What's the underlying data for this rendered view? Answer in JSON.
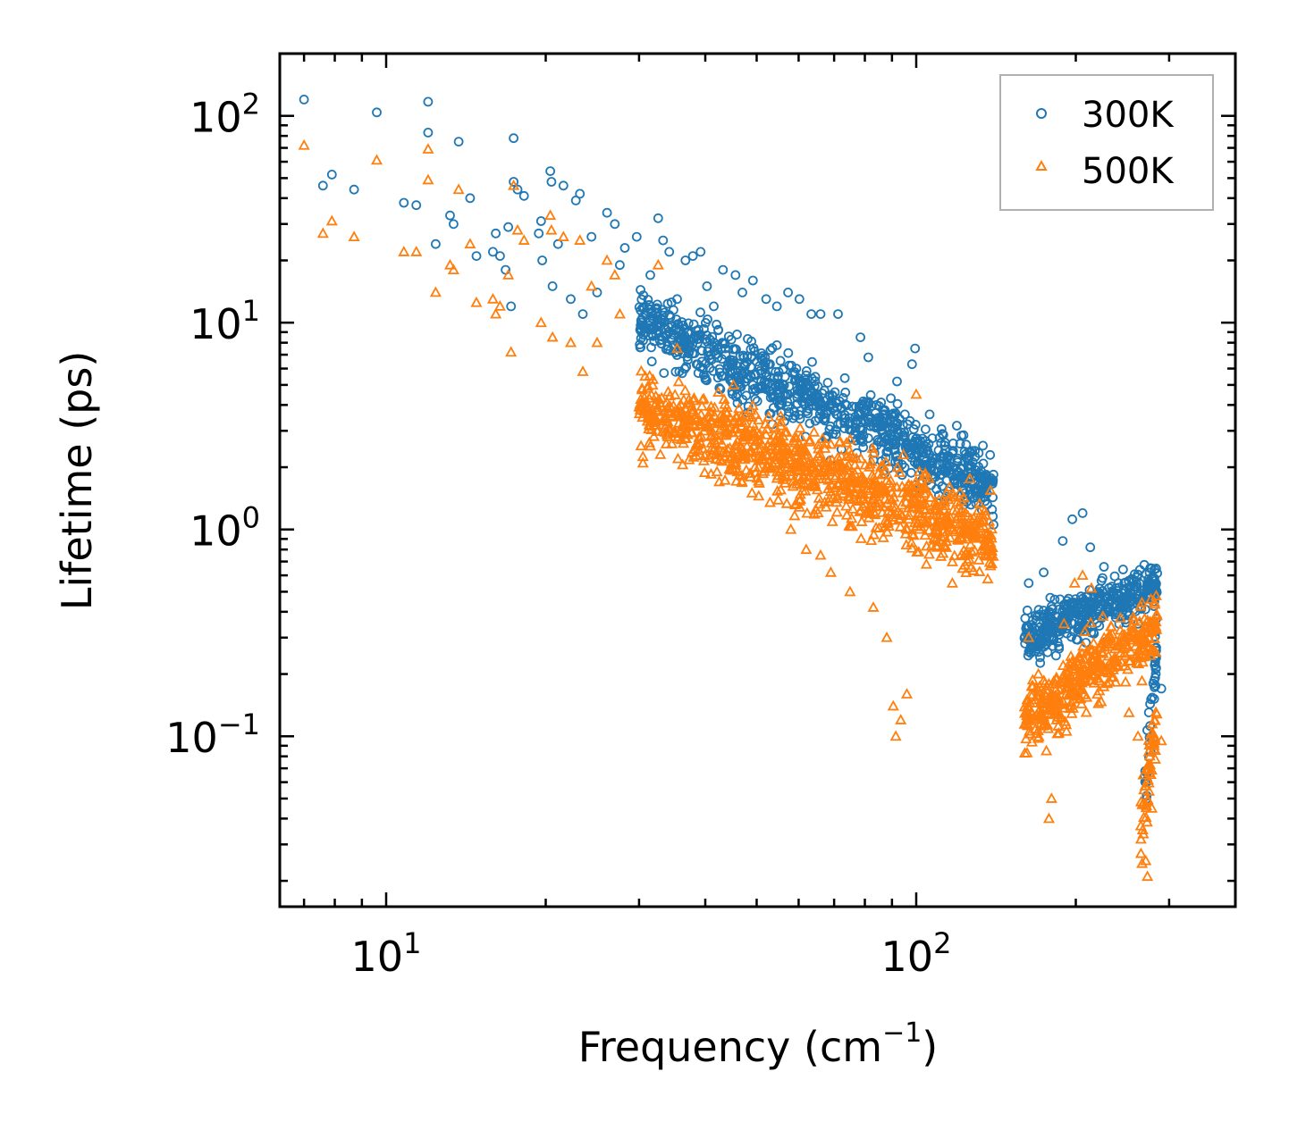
{
  "chart_data": {
    "type": "scatter",
    "title": "",
    "xlabel": {
      "text": "Frequency (cm",
      "sup": "−1",
      "suffix": ")"
    },
    "ylabel": "Lifetime (ps)",
    "xscale": "log",
    "yscale": "log",
    "xlim": [
      6.3,
      400
    ],
    "ylim": [
      0.015,
      200
    ],
    "grid": false,
    "legend_position": "top-right",
    "x_ticks": [
      {
        "value": 10,
        "base": "10",
        "exp": "1"
      },
      {
        "value": 100,
        "base": "10",
        "exp": "2"
      }
    ],
    "y_ticks": [
      {
        "value": 100,
        "base": "10",
        "exp": "2"
      },
      {
        "value": 10,
        "base": "10",
        "exp": "1"
      },
      {
        "value": 1,
        "base": "10",
        "exp": "0"
      },
      {
        "value": 0.1,
        "base": "10",
        "exp": "−1"
      }
    ],
    "series": [
      {
        "name": "300K",
        "marker": "circle",
        "color": "#1f77b4",
        "points": [
          [
            7.0,
            120
          ],
          [
            7.6,
            46
          ],
          [
            7.9,
            52
          ],
          [
            8.7,
            44
          ],
          [
            9.6,
            104
          ],
          [
            10.8,
            38
          ],
          [
            11.4,
            37
          ],
          [
            12.0,
            117
          ],
          [
            12.0,
            83
          ],
          [
            12.4,
            24
          ],
          [
            13.2,
            33
          ],
          [
            13.4,
            30
          ],
          [
            13.7,
            75
          ],
          [
            14.4,
            40
          ],
          [
            14.8,
            21
          ],
          [
            15.9,
            22
          ],
          [
            16.1,
            27
          ],
          [
            16.4,
            21
          ],
          [
            16.8,
            18
          ],
          [
            17.0,
            29
          ],
          [
            17.2,
            12
          ],
          [
            17.4,
            78
          ],
          [
            17.4,
            48
          ],
          [
            17.7,
            44
          ],
          [
            18.2,
            41
          ],
          [
            19.4,
            27
          ],
          [
            19.6,
            31
          ],
          [
            19.7,
            20
          ],
          [
            20.4,
            54
          ],
          [
            20.5,
            48
          ],
          [
            20.6,
            15
          ],
          [
            21.1,
            24
          ],
          [
            21.6,
            46
          ],
          [
            22.3,
            13
          ],
          [
            22.8,
            39
          ],
          [
            23.2,
            42
          ],
          [
            23.5,
            11
          ],
          [
            24.4,
            26
          ],
          [
            25.0,
            14
          ],
          [
            26.1,
            34
          ],
          [
            27.0,
            30
          ],
          [
            27.6,
            19
          ],
          [
            28.2,
            23
          ],
          [
            29.7,
            26
          ],
          [
            30.8,
            9.5
          ],
          [
            31.5,
            17
          ],
          [
            32.6,
            32
          ],
          [
            33.3,
            25
          ],
          [
            34.2,
            22
          ],
          [
            35.4,
            13
          ],
          [
            36.7,
            20
          ],
          [
            37.9,
            21
          ],
          [
            39.2,
            22
          ],
          [
            40.3,
            15
          ],
          [
            41.5,
            12
          ],
          [
            43.2,
            18
          ],
          [
            45.6,
            17
          ],
          [
            47.0,
            14
          ],
          [
            49.2,
            16
          ],
          [
            52.1,
            13
          ],
          [
            54.6,
            12
          ],
          [
            57.3,
            14
          ],
          [
            60.2,
            13
          ],
          [
            63.4,
            11
          ],
          [
            66.0,
            11
          ],
          [
            71.2,
            11
          ],
          [
            78.5,
            8.5
          ],
          [
            81.2,
            6.8
          ],
          [
            92.0,
            5.2
          ],
          [
            98.2,
            6.3
          ],
          [
            99.5,
            7.5
          ],
          [
            106.0,
            3.6
          ],
          [
            112.0,
            2.9
          ],
          [
            121.0,
            2.6
          ],
          [
            129.0,
            2.4
          ],
          [
            135.0,
            1.6
          ],
          [
            139.0,
            1.25
          ],
          [
            163.0,
            0.55
          ],
          [
            174.0,
            0.62
          ],
          [
            189.0,
            0.88
          ],
          [
            197.0,
            1.12
          ],
          [
            206.0,
            1.2
          ],
          [
            213.0,
            0.82
          ],
          [
            226.0,
            0.66
          ],
          [
            238.0,
            0.52
          ],
          [
            250.0,
            0.42
          ],
          [
            262.0,
            0.35
          ],
          [
            271.0,
            0.32
          ],
          [
            280.0,
            0.18
          ],
          [
            290.0,
            0.17
          ]
        ],
        "clusters": [
          {
            "x": [
              30,
              140
            ],
            "center": [
              10.5,
              1.6
            ],
            "spread": 0.17,
            "n": 900
          },
          {
            "x": [
              160,
              285
            ],
            "center": [
              0.3,
              0.55
            ],
            "spread": 0.12,
            "n": 420
          },
          {
            "x": [
              270,
              285
            ],
            "center": [
              0.05,
              0.3
            ],
            "spread": 0.2,
            "n": 40
          }
        ]
      },
      {
        "name": "500K",
        "marker": "triangle",
        "color": "#ff7f0e",
        "points": [
          [
            7.0,
            72
          ],
          [
            7.6,
            27
          ],
          [
            7.9,
            31
          ],
          [
            8.7,
            26
          ],
          [
            9.6,
            61
          ],
          [
            10.8,
            22
          ],
          [
            11.4,
            22
          ],
          [
            12.0,
            69
          ],
          [
            12.0,
            49
          ],
          [
            12.4,
            14
          ],
          [
            13.2,
            19
          ],
          [
            13.4,
            18
          ],
          [
            13.7,
            44
          ],
          [
            14.4,
            24
          ],
          [
            14.8,
            12.5
          ],
          [
            15.9,
            13
          ],
          [
            16.1,
            11
          ],
          [
            16.4,
            12
          ],
          [
            17.0,
            17
          ],
          [
            17.2,
            7.2
          ],
          [
            17.4,
            46
          ],
          [
            17.7,
            28
          ],
          [
            18.2,
            25
          ],
          [
            19.6,
            10
          ],
          [
            20.4,
            33
          ],
          [
            20.5,
            28
          ],
          [
            20.6,
            8.5
          ],
          [
            21.6,
            26
          ],
          [
            22.3,
            8
          ],
          [
            23.2,
            25
          ],
          [
            23.5,
            5.8
          ],
          [
            24.4,
            15
          ],
          [
            25.0,
            8
          ],
          [
            26.1,
            20
          ],
          [
            27.0,
            17
          ],
          [
            27.6,
            11
          ],
          [
            30.8,
            5.5
          ],
          [
            32.6,
            19
          ],
          [
            35.4,
            7.5
          ],
          [
            38.0,
            4.2
          ],
          [
            40.0,
            3.2
          ],
          [
            43.0,
            2.6
          ],
          [
            46.0,
            1.9
          ],
          [
            49.0,
            1.5
          ],
          [
            53.0,
            1.35
          ],
          [
            58.0,
            1.0
          ],
          [
            62.0,
            0.8
          ],
          [
            66.0,
            0.75
          ],
          [
            69.0,
            0.62
          ],
          [
            75.0,
            0.5
          ],
          [
            83.0,
            0.42
          ],
          [
            88.0,
            0.3
          ],
          [
            90.5,
            0.14
          ],
          [
            91.5,
            0.1
          ],
          [
            93.5,
            0.12
          ],
          [
            96.0,
            0.16
          ],
          [
            100.0,
            4.5
          ],
          [
            108.0,
            0.9
          ],
          [
            117.0,
            0.55
          ],
          [
            125.0,
            0.7
          ],
          [
            138.0,
            0.75
          ],
          [
            163.0,
            0.3
          ],
          [
            170.0,
            0.2
          ],
          [
            176.0,
            0.085
          ],
          [
            178.0,
            0.04
          ],
          [
            180.0,
            0.05
          ],
          [
            184.0,
            0.12
          ],
          [
            190.0,
            0.35
          ],
          [
            199.0,
            0.55
          ],
          [
            206.0,
            0.6
          ],
          [
            214.0,
            0.52
          ],
          [
            225.0,
            0.38
          ],
          [
            238.0,
            0.22
          ],
          [
            252.0,
            0.13
          ],
          [
            262.0,
            0.1
          ],
          [
            268.0,
            0.065
          ],
          [
            271.0,
            0.025
          ],
          [
            273.0,
            0.021
          ],
          [
            281.0,
            0.1
          ],
          [
            290.0,
            0.095
          ]
        ],
        "clusters": [
          {
            "x": [
              30,
              140
            ],
            "center": [
              4.0,
              0.9
            ],
            "spread": 0.2,
            "n": 1000
          },
          {
            "x": [
              160,
              285
            ],
            "center": [
              0.12,
              0.35
            ],
            "spread": 0.16,
            "n": 420
          },
          {
            "x": [
              265,
              285
            ],
            "center": [
              0.035,
              0.12
            ],
            "spread": 0.2,
            "n": 50
          }
        ]
      }
    ]
  }
}
